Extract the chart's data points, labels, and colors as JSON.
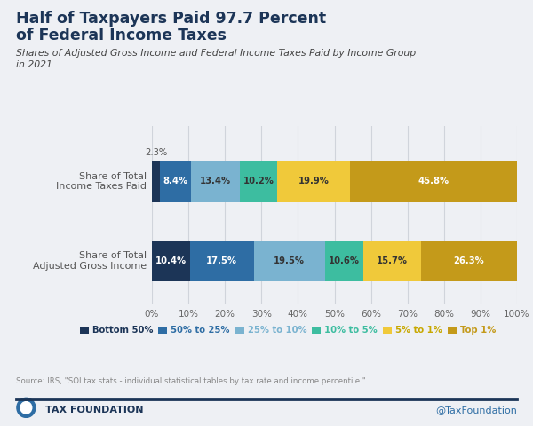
{
  "title_line1": "Half of Taxpayers Paid 97.7 Percent",
  "title_line2": "of Federal Income Taxes",
  "subtitle": "Shares of Adjusted Gross Income and Federal Income Taxes Paid by Income Group\nin 2021",
  "bar_labels": [
    "Share of Total\nIncome Taxes Paid",
    "Share of Total\nAdjusted Gross Income"
  ],
  "categories": [
    "Bottom 50%",
    "50% to 25%",
    "25% to 10%",
    "10% to 5%",
    "5% to 1%",
    "Top 1%"
  ],
  "colors": [
    "#1c3557",
    "#2e6da4",
    "#7ab3d0",
    "#3dbda0",
    "#f0c93a",
    "#c49a1a"
  ],
  "legend_text_colors": [
    "#1c3557",
    "#2e6da4",
    "#7ab3d0",
    "#3dbda0",
    "#c8a800",
    "#c49a1a"
  ],
  "tax_values": [
    2.3,
    8.4,
    13.4,
    10.2,
    19.9,
    45.8
  ],
  "income_values": [
    10.4,
    17.5,
    19.5,
    10.6,
    15.7,
    26.3
  ],
  "source_text": "Source: IRS, \"SOI tax stats - individual statistical tables by tax rate and income percentile.\"",
  "footer_left": "TAX FOUNDATION",
  "footer_right": "@TaxFoundation",
  "bg_color": "#eef0f4",
  "title_color": "#1c3557",
  "subtitle_color": "#444444",
  "label_color": "#555555",
  "footer_line_color": "#1c3557",
  "grid_color": "#d0d4db",
  "inner_label_light": "white",
  "inner_label_dark": "#333333",
  "above_label_color": "#555555"
}
